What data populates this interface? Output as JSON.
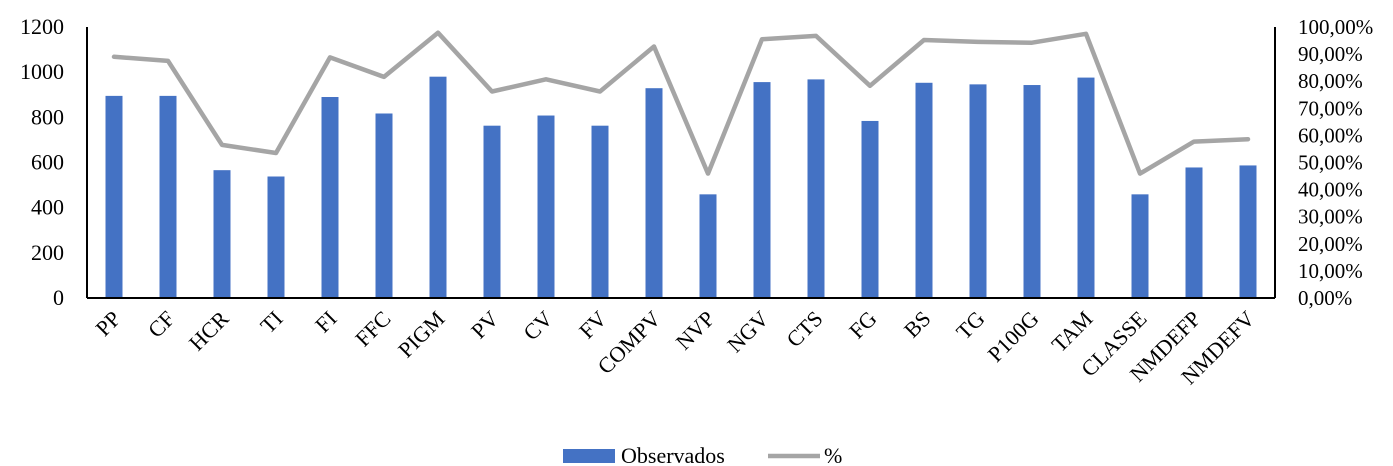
{
  "chart_data": {
    "type": "bar+line",
    "categories": [
      "PP",
      "CF",
      "HCR",
      "TI",
      "FI",
      "FFC",
      "PIGM",
      "PV",
      "CV",
      "FV",
      "COMPV",
      "NVP",
      "NGV",
      "CTS",
      "FG",
      "BS",
      "TG",
      "P100G",
      "TAM",
      "CLASSE",
      "NMDEFP",
      "NMDEFV"
    ],
    "series": [
      {
        "name": "Observados",
        "type": "bar",
        "axis": "left",
        "color": "#4472C4",
        "values": [
          895,
          895,
          566,
          538,
          890,
          817,
          980,
          763,
          808,
          763,
          929,
          459,
          956,
          968,
          784,
          953,
          946,
          943,
          976,
          459,
          578,
          587
        ]
      },
      {
        "name": "%",
        "type": "line",
        "axis": "right",
        "color": "#A5A5A5",
        "values": [
          89.0,
          87.5,
          56.5,
          53.5,
          88.8,
          81.6,
          97.9,
          76.2,
          80.7,
          76.2,
          92.8,
          45.9,
          95.5,
          96.7,
          78.3,
          95.2,
          94.5,
          94.2,
          97.5,
          45.9,
          57.7,
          58.6
        ]
      }
    ],
    "y_left": {
      "min": 0,
      "max": 1200,
      "ticks": [
        "0",
        "200",
        "400",
        "600",
        "800",
        "1000",
        "1200"
      ]
    },
    "y_right": {
      "min": 0,
      "max": 100,
      "ticks": [
        "0,00%",
        "10,00%",
        "20,00%",
        "30,00%",
        "40,00%",
        "50,00%",
        "60,00%",
        "70,00%",
        "80,00%",
        "90,00%",
        "100,00%"
      ]
    },
    "legend": {
      "placement": "bottom-center",
      "items": [
        "Observados",
        "%"
      ]
    },
    "grid": false
  }
}
